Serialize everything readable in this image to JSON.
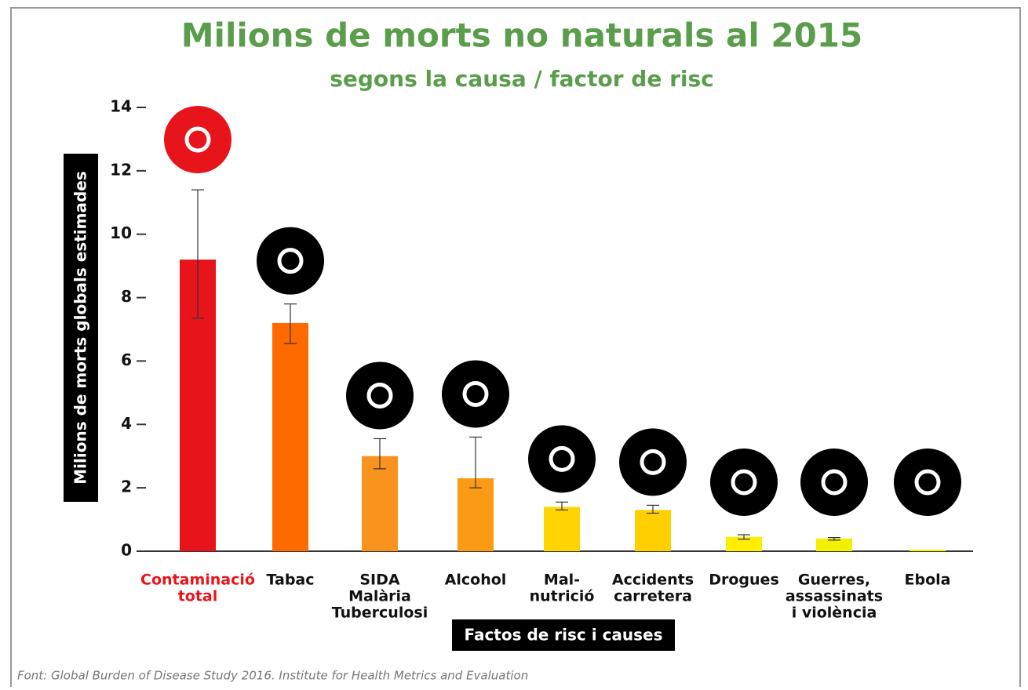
{
  "chart_data": {
    "type": "bar",
    "title": "Milions de morts no naturals al 2015",
    "subtitle": "segons la causa / factor de risc",
    "y_label": "Milions de morts globals estimades",
    "x_label": "Factos de risc i causes",
    "source": "Font: Global Burden of Disease Study 2016. Institute for Health Metrics and Evaluation",
    "categories": [
      [
        "Contaminació",
        "total"
      ],
      [
        "Tabac"
      ],
      [
        "SIDA",
        "Malària",
        "Tuberculosi"
      ],
      [
        "Alcohol"
      ],
      [
        "Mal-",
        "nutrició"
      ],
      [
        "Accidents",
        "carretera"
      ],
      [
        "Drogues"
      ],
      [
        "Guerres,",
        "assassinats",
        "i violència"
      ],
      [
        "Ebola"
      ]
    ],
    "values": [
      9.2,
      7.2,
      3.0,
      2.3,
      1.4,
      1.3,
      0.45,
      0.4,
      0.05
    ],
    "lower": [
      7.35,
      6.55,
      2.6,
      2.0,
      1.3,
      1.2,
      0.38,
      0.35,
      null
    ],
    "upper": [
      11.4,
      7.8,
      3.55,
      3.6,
      1.55,
      1.45,
      0.52,
      0.43,
      null
    ],
    "colors": [
      "#e8141c",
      "#ff6a00",
      "#f7931e",
      "#fb9a14",
      "#ffd400",
      "#ffd000",
      "#ffee00",
      "#f2f000",
      "#f7f200"
    ],
    "ylim": [
      0,
      14
    ],
    "yticks": [
      0,
      2,
      4,
      6,
      8,
      10,
      12,
      14
    ]
  }
}
